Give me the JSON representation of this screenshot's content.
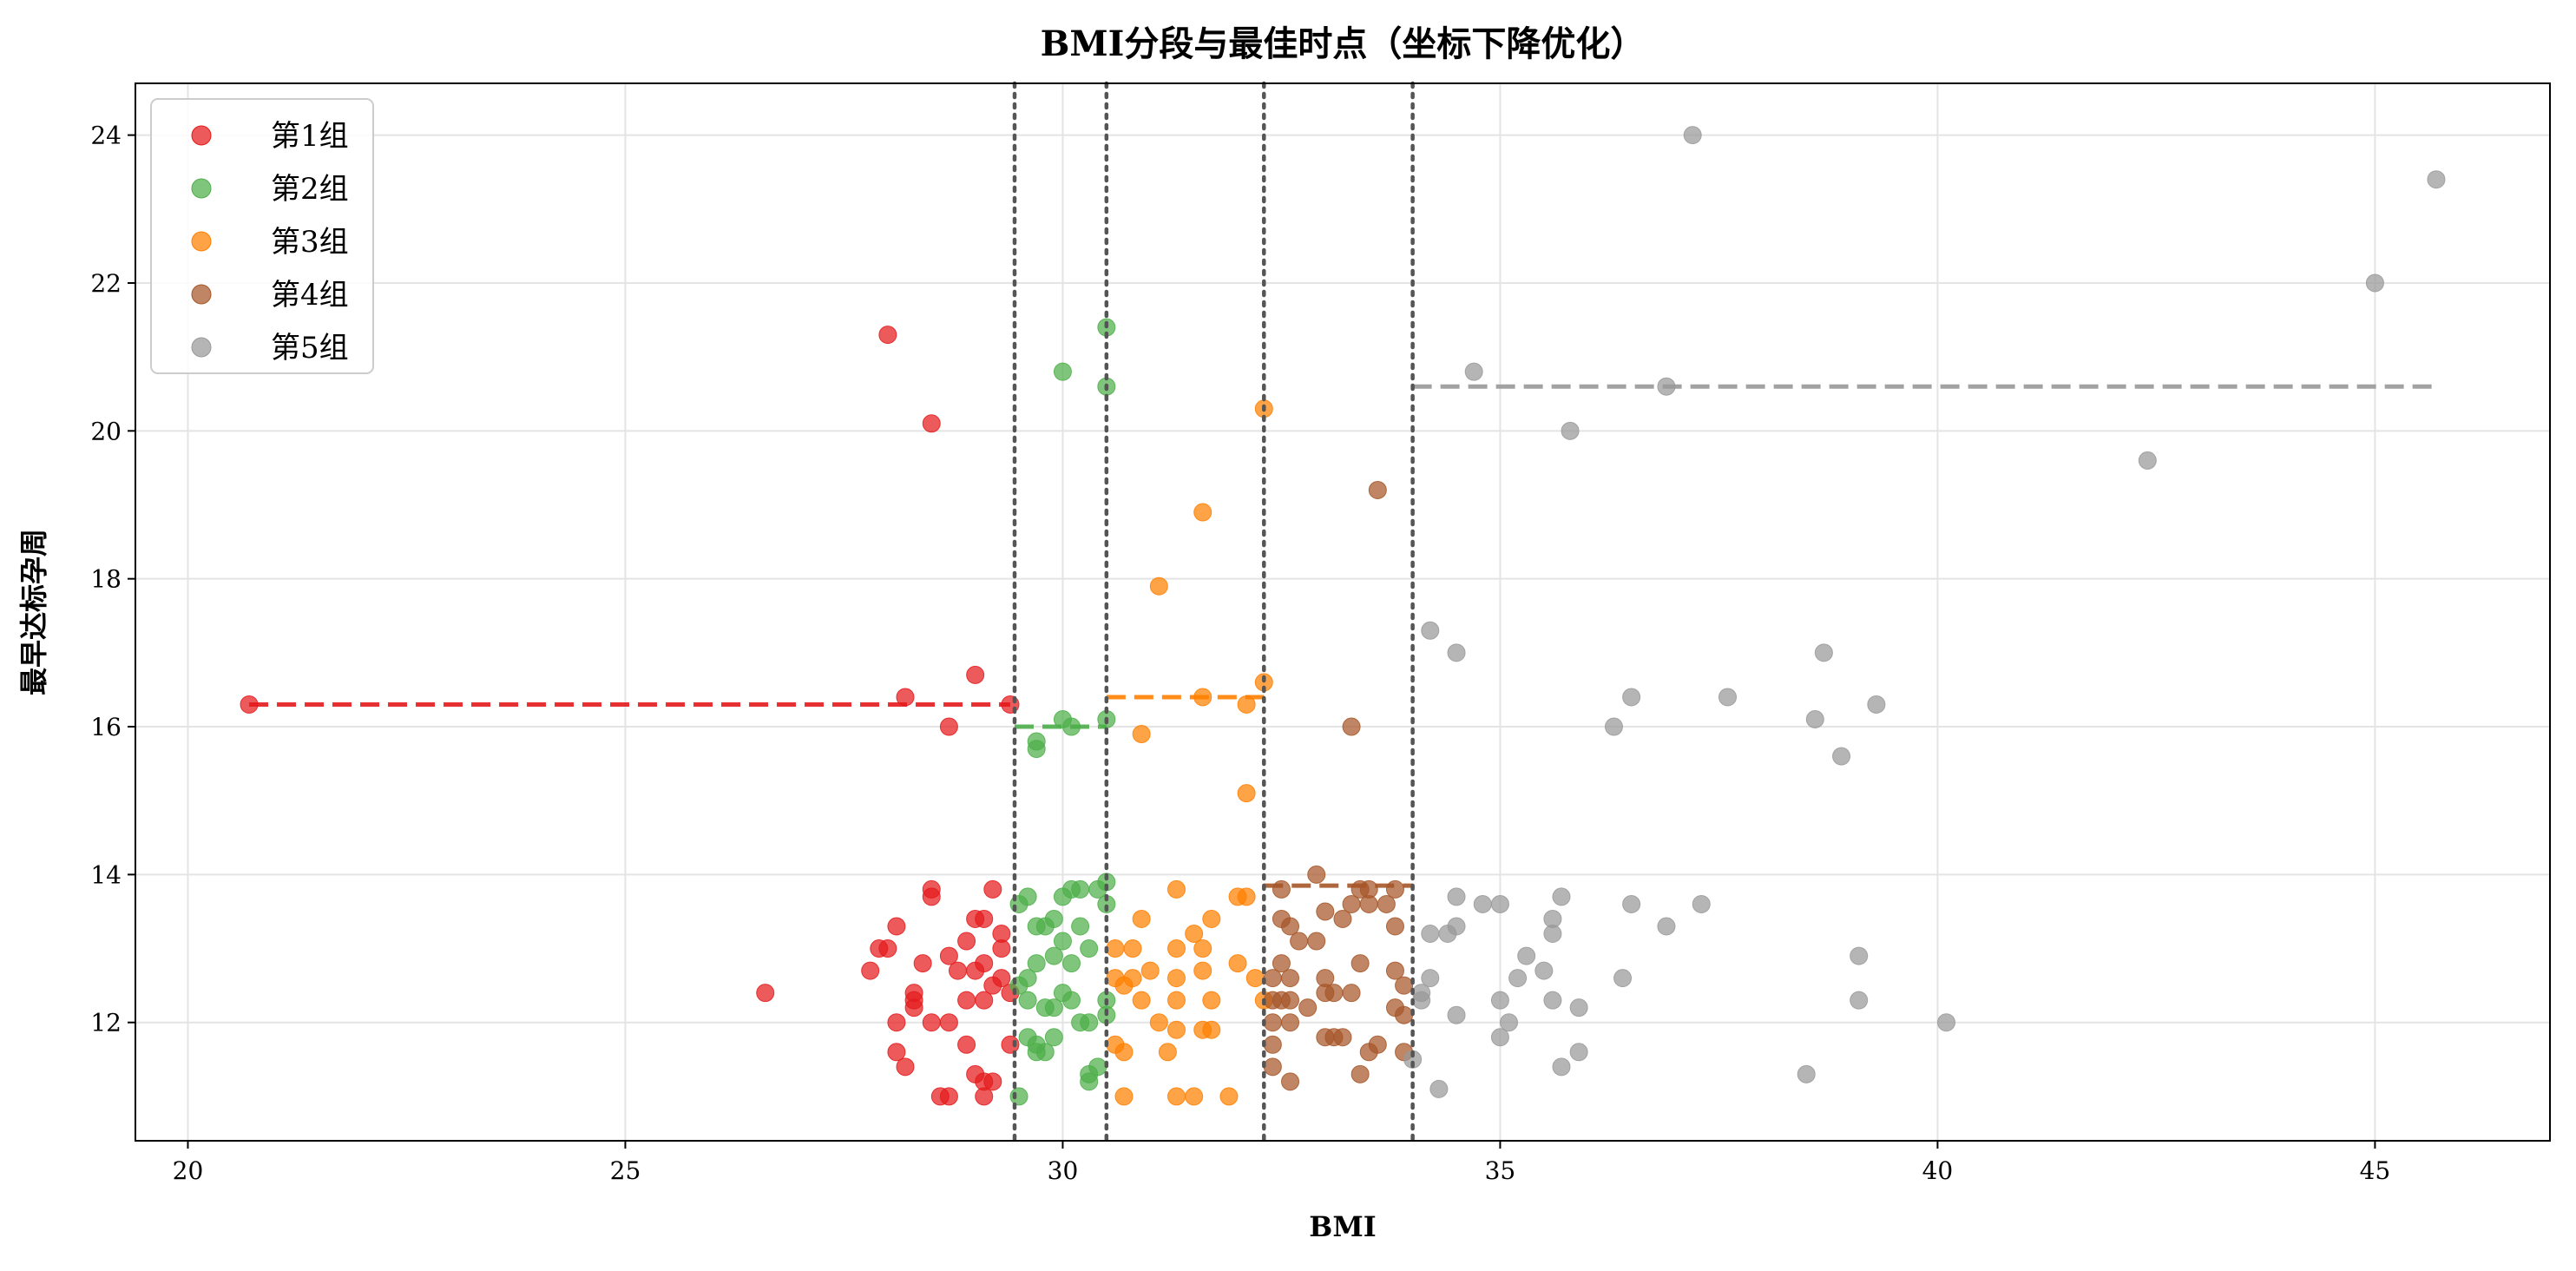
{
  "chart_data": {
    "type": "scatter",
    "title": "BMI分段与最佳时点（坐标下降优化）",
    "xlabel": "BMI",
    "ylabel": "最早达标孕周",
    "xlim": [
      19.4,
      47.0
    ],
    "ylim": [
      10.4,
      24.7
    ],
    "xticks": [
      20,
      25,
      30,
      35,
      40,
      45
    ],
    "yticks": [
      12,
      14,
      16,
      18,
      20,
      22,
      24
    ],
    "grid": true,
    "legend_position": "top-left",
    "boundaries": [
      29.45,
      30.5,
      32.3,
      34.0
    ],
    "series": [
      {
        "name": "第1组",
        "color": "#e41a1c",
        "best_week": 16.3,
        "segment": [
          20.7,
          29.4
        ],
        "points": [
          [
            20.7,
            16.3
          ],
          [
            26.6,
            12.4
          ],
          [
            28.0,
            21.3
          ],
          [
            28.5,
            20.1
          ],
          [
            28.2,
            16.4
          ],
          [
            29.0,
            16.7
          ],
          [
            28.7,
            16.0
          ],
          [
            29.4,
            16.3
          ],
          [
            27.9,
            13.0
          ],
          [
            28.1,
            13.3
          ],
          [
            28.5,
            13.8
          ],
          [
            28.5,
            13.7
          ],
          [
            28.9,
            13.1
          ],
          [
            29.0,
            13.4
          ],
          [
            29.1,
            13.4
          ],
          [
            29.2,
            13.8
          ],
          [
            29.3,
            13.2
          ],
          [
            29.3,
            13.0
          ],
          [
            27.8,
            12.7
          ],
          [
            28.0,
            13.0
          ],
          [
            28.3,
            12.4
          ],
          [
            28.4,
            12.8
          ],
          [
            28.7,
            12.9
          ],
          [
            28.8,
            12.7
          ],
          [
            29.1,
            12.8
          ],
          [
            29.0,
            12.7
          ],
          [
            28.3,
            12.2
          ],
          [
            28.5,
            12.0
          ],
          [
            28.7,
            12.0
          ],
          [
            28.9,
            12.3
          ],
          [
            29.1,
            12.3
          ],
          [
            29.2,
            12.5
          ],
          [
            29.3,
            12.6
          ],
          [
            29.4,
            12.4
          ],
          [
            28.1,
            12.0
          ],
          [
            28.1,
            11.6
          ],
          [
            28.2,
            11.4
          ],
          [
            28.9,
            11.7
          ],
          [
            29.0,
            11.3
          ],
          [
            29.1,
            11.2
          ],
          [
            29.2,
            11.2
          ],
          [
            29.4,
            11.7
          ],
          [
            28.6,
            11.0
          ],
          [
            28.7,
            11.0
          ],
          [
            29.1,
            11.0
          ],
          [
            28.3,
            12.3
          ]
        ]
      },
      {
        "name": "第2组",
        "color": "#4daf4a",
        "best_week": 16.0,
        "segment": [
          29.45,
          30.5
        ],
        "points": [
          [
            30.5,
            21.4
          ],
          [
            30.0,
            20.8
          ],
          [
            30.5,
            20.6
          ],
          [
            30.0,
            16.1
          ],
          [
            30.1,
            16.0
          ],
          [
            29.7,
            15.8
          ],
          [
            29.7,
            15.7
          ],
          [
            30.5,
            16.1
          ],
          [
            29.5,
            13.6
          ],
          [
            29.6,
            13.7
          ],
          [
            29.8,
            13.3
          ],
          [
            30.0,
            13.7
          ],
          [
            30.1,
            13.8
          ],
          [
            30.2,
            13.8
          ],
          [
            30.4,
            13.8
          ],
          [
            30.5,
            13.9
          ],
          [
            30.5,
            13.6
          ],
          [
            29.7,
            13.3
          ],
          [
            29.9,
            13.4
          ],
          [
            30.0,
            13.1
          ],
          [
            30.2,
            13.3
          ],
          [
            29.6,
            12.6
          ],
          [
            29.7,
            12.8
          ],
          [
            29.9,
            12.9
          ],
          [
            30.1,
            12.8
          ],
          [
            30.3,
            13.0
          ],
          [
            29.5,
            12.5
          ],
          [
            29.6,
            12.3
          ],
          [
            29.8,
            12.2
          ],
          [
            29.9,
            12.2
          ],
          [
            30.0,
            12.4
          ],
          [
            30.1,
            12.3
          ],
          [
            30.2,
            12.0
          ],
          [
            30.3,
            12.0
          ],
          [
            30.5,
            12.1
          ],
          [
            30.5,
            12.3
          ],
          [
            29.6,
            11.8
          ],
          [
            29.7,
            11.7
          ],
          [
            29.7,
            11.6
          ],
          [
            29.8,
            11.6
          ],
          [
            29.9,
            11.8
          ],
          [
            30.3,
            11.3
          ],
          [
            30.3,
            11.2
          ],
          [
            30.4,
            11.4
          ],
          [
            29.5,
            11.0
          ]
        ]
      },
      {
        "name": "第3组",
        "color": "#ff7f00",
        "best_week": 16.4,
        "segment": [
          30.5,
          32.3
        ],
        "points": [
          [
            32.3,
            20.3
          ],
          [
            31.6,
            18.9
          ],
          [
            31.1,
            17.9
          ],
          [
            32.3,
            16.6
          ],
          [
            31.6,
            16.4
          ],
          [
            32.1,
            16.3
          ],
          [
            30.9,
            15.9
          ],
          [
            32.1,
            15.1
          ],
          [
            30.9,
            13.4
          ],
          [
            31.3,
            13.8
          ],
          [
            31.5,
            13.2
          ],
          [
            31.7,
            13.4
          ],
          [
            32.0,
            13.7
          ],
          [
            32.1,
            13.7
          ],
          [
            30.6,
            13.0
          ],
          [
            30.8,
            13.0
          ],
          [
            31.3,
            13.0
          ],
          [
            31.6,
            13.0
          ],
          [
            32.0,
            12.8
          ],
          [
            30.6,
            12.6
          ],
          [
            30.7,
            12.5
          ],
          [
            30.8,
            12.6
          ],
          [
            31.0,
            12.7
          ],
          [
            31.3,
            12.6
          ],
          [
            31.6,
            12.7
          ],
          [
            32.2,
            12.6
          ],
          [
            30.9,
            12.3
          ],
          [
            31.3,
            12.3
          ],
          [
            31.7,
            12.3
          ],
          [
            32.3,
            12.3
          ],
          [
            31.1,
            12.0
          ],
          [
            31.3,
            11.9
          ],
          [
            31.6,
            11.9
          ],
          [
            31.7,
            11.9
          ],
          [
            30.6,
            11.7
          ],
          [
            30.7,
            11.6
          ],
          [
            31.2,
            11.6
          ],
          [
            31.3,
            11.0
          ],
          [
            31.5,
            11.0
          ],
          [
            30.7,
            11.0
          ],
          [
            31.9,
            11.0
          ]
        ]
      },
      {
        "name": "第4组",
        "color": "#a65628",
        "best_week": 13.85,
        "segment": [
          32.3,
          34.0
        ],
        "points": [
          [
            33.6,
            19.2
          ],
          [
            33.3,
            16.0
          ],
          [
            32.5,
            13.8
          ],
          [
            32.9,
            14.0
          ],
          [
            33.4,
            13.8
          ],
          [
            33.5,
            13.8
          ],
          [
            33.8,
            13.8
          ],
          [
            32.5,
            13.4
          ],
          [
            32.6,
            13.3
          ],
          [
            32.7,
            13.1
          ],
          [
            33.0,
            13.5
          ],
          [
            33.2,
            13.4
          ],
          [
            33.3,
            13.6
          ],
          [
            33.5,
            13.6
          ],
          [
            33.7,
            13.6
          ],
          [
            33.8,
            13.3
          ],
          [
            32.9,
            13.1
          ],
          [
            32.4,
            12.6
          ],
          [
            32.5,
            12.8
          ],
          [
            32.6,
            12.6
          ],
          [
            33.0,
            12.6
          ],
          [
            33.1,
            12.4
          ],
          [
            33.4,
            12.8
          ],
          [
            33.8,
            12.7
          ],
          [
            33.9,
            12.5
          ],
          [
            32.4,
            12.3
          ],
          [
            32.5,
            12.3
          ],
          [
            32.6,
            12.3
          ],
          [
            32.8,
            12.2
          ],
          [
            33.0,
            12.4
          ],
          [
            33.3,
            12.4
          ],
          [
            33.8,
            12.2
          ],
          [
            33.9,
            12.1
          ],
          [
            32.4,
            12.0
          ],
          [
            32.6,
            12.0
          ],
          [
            33.0,
            11.8
          ],
          [
            33.1,
            11.8
          ],
          [
            33.2,
            11.8
          ],
          [
            33.6,
            11.7
          ],
          [
            33.9,
            11.6
          ],
          [
            32.4,
            11.7
          ],
          [
            32.4,
            11.4
          ],
          [
            33.5,
            11.6
          ],
          [
            33.4,
            11.3
          ],
          [
            32.6,
            11.2
          ]
        ]
      },
      {
        "name": "第5组",
        "color": "#999999",
        "best_week": 20.6,
        "segment": [
          34.0,
          45.7
        ],
        "points": [
          [
            37.2,
            24.0
          ],
          [
            45.7,
            23.4
          ],
          [
            45.0,
            22.0
          ],
          [
            34.7,
            20.8
          ],
          [
            36.9,
            20.6
          ],
          [
            35.8,
            20.0
          ],
          [
            42.4,
            19.6
          ],
          [
            34.2,
            17.3
          ],
          [
            34.5,
            17.0
          ],
          [
            38.7,
            17.0
          ],
          [
            36.5,
            16.4
          ],
          [
            37.6,
            16.4
          ],
          [
            36.3,
            16.0
          ],
          [
            38.6,
            16.1
          ],
          [
            39.3,
            16.3
          ],
          [
            38.9,
            15.6
          ],
          [
            34.5,
            13.7
          ],
          [
            34.8,
            13.6
          ],
          [
            35.0,
            13.6
          ],
          [
            35.7,
            13.7
          ],
          [
            36.5,
            13.6
          ],
          [
            37.3,
            13.6
          ],
          [
            35.6,
            13.4
          ],
          [
            34.2,
            13.2
          ],
          [
            34.4,
            13.2
          ],
          [
            34.5,
            13.3
          ],
          [
            35.6,
            13.2
          ],
          [
            36.9,
            13.3
          ],
          [
            35.3,
            12.9
          ],
          [
            35.5,
            12.7
          ],
          [
            39.1,
            12.9
          ],
          [
            34.2,
            12.6
          ],
          [
            34.1,
            12.4
          ],
          [
            35.2,
            12.6
          ],
          [
            36.4,
            12.6
          ],
          [
            34.1,
            12.3
          ],
          [
            34.5,
            12.1
          ],
          [
            35.0,
            12.3
          ],
          [
            35.6,
            12.3
          ],
          [
            35.9,
            12.2
          ],
          [
            39.1,
            12.3
          ],
          [
            35.1,
            12.0
          ],
          [
            40.1,
            12.0
          ],
          [
            35.0,
            11.8
          ],
          [
            35.9,
            11.6
          ],
          [
            34.0,
            11.5
          ],
          [
            35.7,
            11.4
          ],
          [
            38.5,
            11.3
          ],
          [
            34.3,
            11.1
          ]
        ]
      }
    ]
  }
}
